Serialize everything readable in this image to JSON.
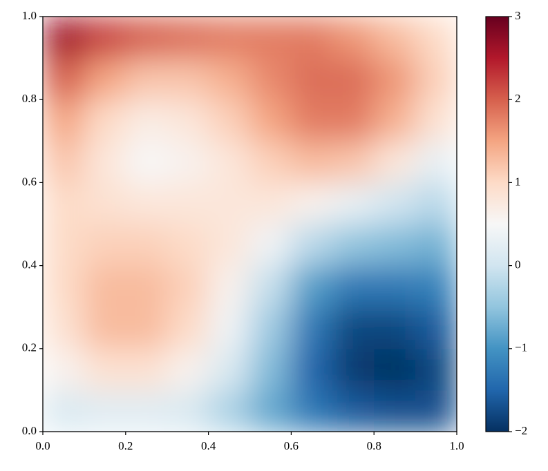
{
  "chart_data": {
    "type": "heatmap",
    "x": [
      0.05,
      0.15,
      0.25,
      0.35,
      0.45,
      0.55,
      0.65,
      0.75,
      0.85,
      0.95
    ],
    "y": [
      0.05,
      0.15,
      0.25,
      0.35,
      0.45,
      0.55,
      0.65,
      0.75,
      0.85,
      0.95
    ],
    "z": [
      [
        0.1,
        0.2,
        0.2,
        0.1,
        -0.3,
        -0.8,
        -1.3,
        -1.6,
        -1.7,
        -1.7
      ],
      [
        0.6,
        0.9,
        0.9,
        0.6,
        0.1,
        -0.6,
        -1.5,
        -1.9,
        -2.0,
        -1.8
      ],
      [
        0.9,
        1.3,
        1.3,
        1.0,
        0.4,
        -0.4,
        -1.3,
        -1.8,
        -1.8,
        -1.6
      ],
      [
        1.0,
        1.3,
        1.3,
        1.1,
        0.6,
        -0.1,
        -0.9,
        -1.3,
        -1.3,
        -1.2
      ],
      [
        1.0,
        1.1,
        1.1,
        1.0,
        0.8,
        0.4,
        -0.2,
        -0.5,
        -0.6,
        -0.7
      ],
      [
        1.0,
        0.9,
        0.8,
        0.8,
        0.8,
        0.8,
        0.6,
        0.3,
        0.0,
        -0.2
      ],
      [
        1.2,
        0.8,
        0.5,
        0.6,
        0.8,
        1.1,
        1.3,
        1.2,
        0.8,
        0.3
      ],
      [
        1.5,
        1.0,
        0.7,
        0.8,
        1.1,
        1.5,
        1.8,
        1.8,
        1.4,
        0.9
      ],
      [
        2.0,
        1.5,
        1.2,
        1.2,
        1.4,
        1.7,
        1.9,
        1.9,
        1.6,
        1.1
      ],
      [
        2.6,
        2.2,
        2.0,
        1.9,
        1.8,
        1.8,
        1.8,
        1.6,
        1.3,
        1.0
      ]
    ],
    "xlim": [
      0,
      1
    ],
    "ylim": [
      0,
      1
    ],
    "xticks": [
      {
        "value": 0,
        "label": "0.0"
      },
      {
        "value": 0.2,
        "label": "0.2"
      },
      {
        "value": 0.4,
        "label": "0.4"
      },
      {
        "value": 0.6,
        "label": "0.6"
      },
      {
        "value": 0.8,
        "label": "0.8"
      },
      {
        "value": 1,
        "label": "1.0"
      }
    ],
    "yticks": [
      {
        "value": 0,
        "label": "0.0"
      },
      {
        "value": 0.2,
        "label": "0.2"
      },
      {
        "value": 0.4,
        "label": "0.4"
      },
      {
        "value": 0.6,
        "label": "0.6"
      },
      {
        "value": 0.8,
        "label": "0.8"
      },
      {
        "value": 1,
        "label": "1.0"
      }
    ],
    "colormap": "RdBu_r",
    "clim": [
      -2,
      3
    ],
    "cticks": [
      {
        "value": -2,
        "label": "−2"
      },
      {
        "value": -1,
        "label": "−1"
      },
      0,
      1,
      2,
      3
    ]
  }
}
